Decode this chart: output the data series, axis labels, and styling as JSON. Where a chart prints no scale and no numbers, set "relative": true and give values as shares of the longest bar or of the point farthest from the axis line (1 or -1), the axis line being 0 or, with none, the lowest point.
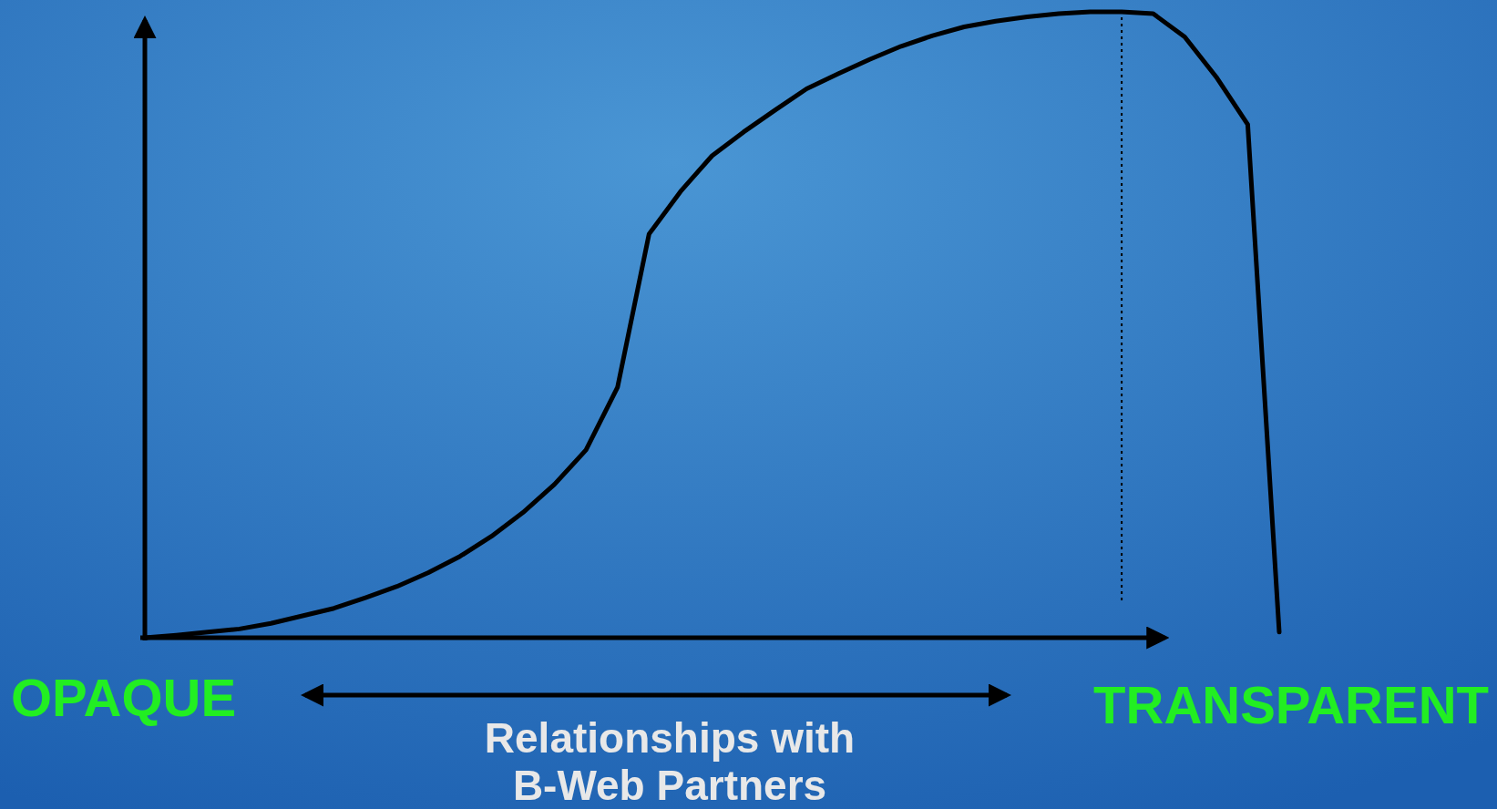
{
  "chart_data": {
    "type": "line",
    "relative": true,
    "xlabel": "Relationships with B-Web Partners",
    "marker": "none",
    "line_style": "solid",
    "categories": [
      null,
      null,
      null,
      null,
      null,
      null,
      null,
      null,
      null,
      null,
      null,
      null,
      null,
      null,
      null,
      null,
      null,
      null,
      null,
      null,
      null,
      null,
      null,
      null,
      null,
      null,
      null,
      null,
      null,
      null,
      null,
      null,
      null,
      null,
      null,
      null,
      null
    ],
    "series": [
      {
        "color": "#000000",
        "values": [
          0,
          0.004,
          0.009,
          0.014,
          0.023,
          0.035,
          0.047,
          0.064,
          0.082,
          0.104,
          0.13,
          0.162,
          0.2,
          0.245,
          0.3,
          0.4,
          0.645,
          0.713,
          0.77,
          0.808,
          0.843,
          0.877,
          0.901,
          0.924,
          0.945,
          0.962,
          0.976,
          0.985,
          0.992,
          0.997,
          1,
          1,
          0.997,
          0.96,
          0.896,
          0.82,
          0.009
        ]
      }
    ],
    "annotations": [
      "OPAQUE",
      "TRANSPARENT"
    ]
  }
}
